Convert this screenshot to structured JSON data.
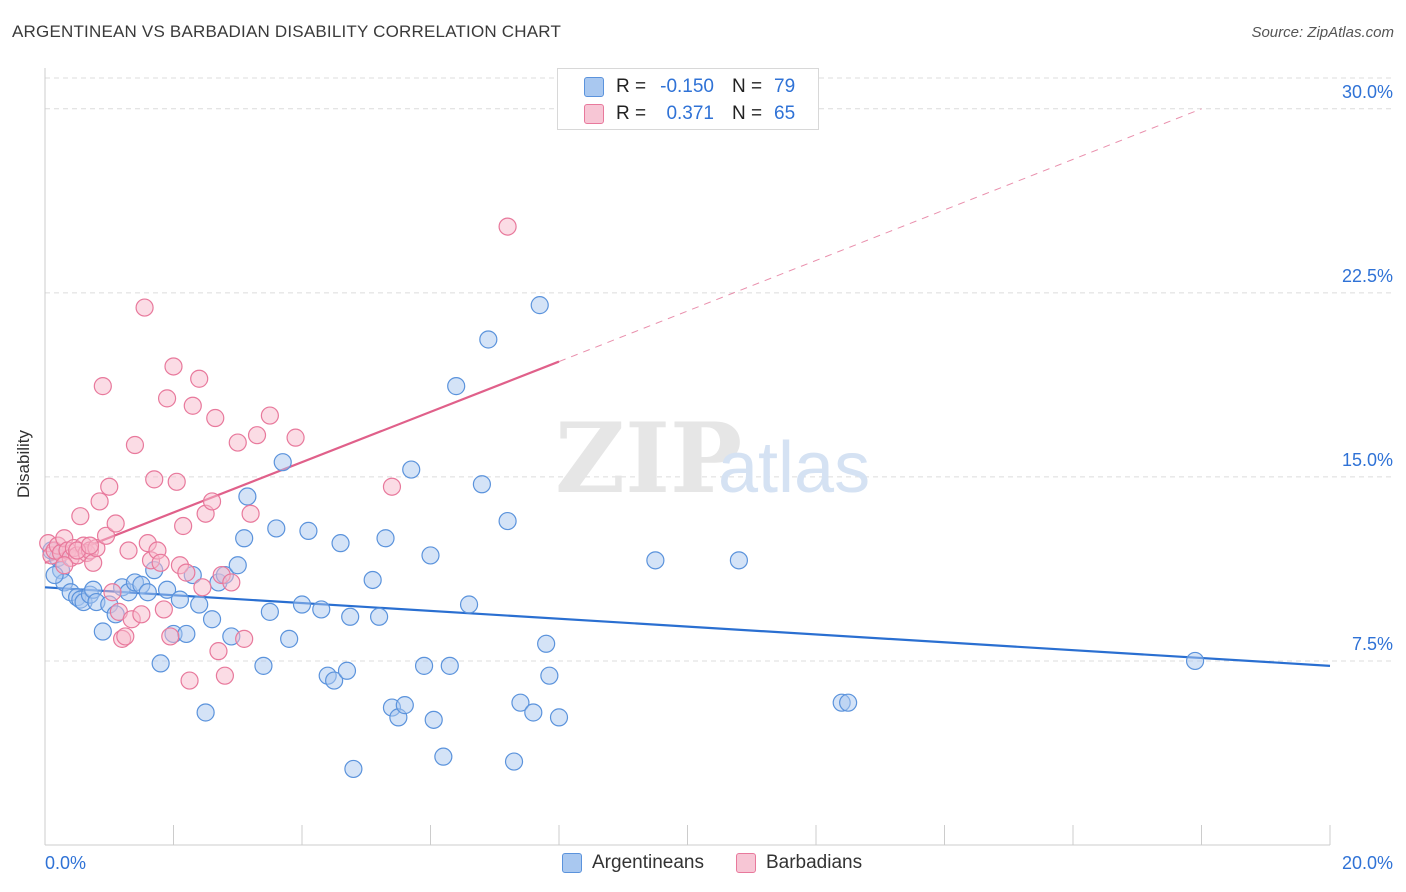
{
  "title": "ARGENTINEAN VS BARBADIAN DISABILITY CORRELATION CHART",
  "source": "Source: ZipAtlas.com",
  "watermark": {
    "zip": "ZIP",
    "atlas": "atlas"
  },
  "legend": {
    "rows": [
      {
        "r_label": "R =",
        "r_value": "-0.150",
        "n_label": "N =",
        "n_value": "79"
      },
      {
        "r_label": "R =",
        "r_value": "0.371",
        "n_label": "N =",
        "n_value": "65"
      }
    ]
  },
  "bottom_legend": [
    "Argentineans",
    "Barbadians"
  ],
  "colors": {
    "blue_fill": "#a9c8f0",
    "blue_stroke": "#5b93dc",
    "blue_line": "#2a6fd1",
    "pink_fill": "#f7b9cc",
    "pink_stroke": "#e8799c",
    "pink_line": "#e0608a",
    "axis_text": "#2f72d6",
    "grid": "#dcdcdc"
  },
  "chart_data": {
    "type": "scatter",
    "title": "ARGENTINEAN VS BARBADIAN DISABILITY CORRELATION CHART",
    "xlabel": "",
    "ylabel": "Disability",
    "xlim": [
      0,
      20
    ],
    "ylim": [
      0,
      31.5
    ],
    "x_tick_labels": [
      "0.0%",
      "20.0%"
    ],
    "y_ticks": [
      7.5,
      15.0,
      22.5,
      30.0
    ],
    "y_tick_labels": [
      "7.5%",
      "15.0%",
      "22.5%",
      "30.0%"
    ],
    "grid": true,
    "legend_position": "top-center",
    "series": [
      {
        "name": "Argentineans",
        "trend": {
          "x": [
            0,
            20
          ],
          "y": [
            10.5,
            7.3
          ]
        },
        "points": [
          [
            0.1,
            12.0
          ],
          [
            0.2,
            11.7
          ],
          [
            0.25,
            11.2
          ],
          [
            0.3,
            10.7
          ],
          [
            0.4,
            10.3
          ],
          [
            0.5,
            10.1
          ],
          [
            0.55,
            10.0
          ],
          [
            0.6,
            9.9
          ],
          [
            0.7,
            10.2
          ],
          [
            0.75,
            10.4
          ],
          [
            0.8,
            9.9
          ],
          [
            0.9,
            8.7
          ],
          [
            1.0,
            9.8
          ],
          [
            1.1,
            9.4
          ],
          [
            1.2,
            10.5
          ],
          [
            1.3,
            10.3
          ],
          [
            1.4,
            10.7
          ],
          [
            1.5,
            10.6
          ],
          [
            1.6,
            10.3
          ],
          [
            1.7,
            11.2
          ],
          [
            1.8,
            7.4
          ],
          [
            1.9,
            10.4
          ],
          [
            2.0,
            8.6
          ],
          [
            2.1,
            10.0
          ],
          [
            2.2,
            8.6
          ],
          [
            2.3,
            11.0
          ],
          [
            2.4,
            9.8
          ],
          [
            2.5,
            5.4
          ],
          [
            2.6,
            9.2
          ],
          [
            2.7,
            10.7
          ],
          [
            2.8,
            11.0
          ],
          [
            2.9,
            8.5
          ],
          [
            3.0,
            11.4
          ],
          [
            3.1,
            12.5
          ],
          [
            3.15,
            14.2
          ],
          [
            3.4,
            7.3
          ],
          [
            3.5,
            9.5
          ],
          [
            3.6,
            12.9
          ],
          [
            3.7,
            15.6
          ],
          [
            3.8,
            8.4
          ],
          [
            4.0,
            9.8
          ],
          [
            4.1,
            12.8
          ],
          [
            4.3,
            9.6
          ],
          [
            4.4,
            6.9
          ],
          [
            4.5,
            6.7
          ],
          [
            4.6,
            12.3
          ],
          [
            4.7,
            7.1
          ],
          [
            4.75,
            9.3
          ],
          [
            4.8,
            3.1
          ],
          [
            5.1,
            10.8
          ],
          [
            5.2,
            9.3
          ],
          [
            5.3,
            12.5
          ],
          [
            5.4,
            5.6
          ],
          [
            5.5,
            5.2
          ],
          [
            5.6,
            5.7
          ],
          [
            5.7,
            15.3
          ],
          [
            5.9,
            7.3
          ],
          [
            6.0,
            11.8
          ],
          [
            6.05,
            5.1
          ],
          [
            6.2,
            3.6
          ],
          [
            6.3,
            7.3
          ],
          [
            6.4,
            18.7
          ],
          [
            6.6,
            9.8
          ],
          [
            6.8,
            14.7
          ],
          [
            6.9,
            20.6
          ],
          [
            7.2,
            13.2
          ],
          [
            7.3,
            3.4
          ],
          [
            7.4,
            5.8
          ],
          [
            7.6,
            5.4
          ],
          [
            7.7,
            22.0
          ],
          [
            7.8,
            8.2
          ],
          [
            7.85,
            6.9
          ],
          [
            8.0,
            5.2
          ],
          [
            9.5,
            11.6
          ],
          [
            10.8,
            11.6
          ],
          [
            12.4,
            5.8
          ],
          [
            12.5,
            5.8
          ],
          [
            17.9,
            7.5
          ],
          [
            0.15,
            11.0
          ]
        ]
      },
      {
        "name": "Barbadians",
        "trend": {
          "x": [
            0,
            8.0,
            18.0
          ],
          "y": [
            11.5,
            19.7,
            30.0
          ]
        },
        "points": [
          [
            0.05,
            12.3
          ],
          [
            0.1,
            11.8
          ],
          [
            0.15,
            12.0
          ],
          [
            0.2,
            12.2
          ],
          [
            0.25,
            11.9
          ],
          [
            0.3,
            12.5
          ],
          [
            0.35,
            12.0
          ],
          [
            0.4,
            11.7
          ],
          [
            0.45,
            12.1
          ],
          [
            0.5,
            11.8
          ],
          [
            0.55,
            13.4
          ],
          [
            0.6,
            12.2
          ],
          [
            0.65,
            11.9
          ],
          [
            0.7,
            12.0
          ],
          [
            0.75,
            11.5
          ],
          [
            0.8,
            12.1
          ],
          [
            0.85,
            14.0
          ],
          [
            0.9,
            18.7
          ],
          [
            0.95,
            12.6
          ],
          [
            1.0,
            14.6
          ],
          [
            1.05,
            10.3
          ],
          [
            1.1,
            13.1
          ],
          [
            1.15,
            9.5
          ],
          [
            1.2,
            8.4
          ],
          [
            1.25,
            8.5
          ],
          [
            1.3,
            12.0
          ],
          [
            1.35,
            9.2
          ],
          [
            1.4,
            16.3
          ],
          [
            1.5,
            9.4
          ],
          [
            1.55,
            21.9
          ],
          [
            1.6,
            12.3
          ],
          [
            1.65,
            11.6
          ],
          [
            1.7,
            14.9
          ],
          [
            1.75,
            12.0
          ],
          [
            1.8,
            11.5
          ],
          [
            1.85,
            9.6
          ],
          [
            1.9,
            18.2
          ],
          [
            1.95,
            8.5
          ],
          [
            2.0,
            19.5
          ],
          [
            2.05,
            14.8
          ],
          [
            2.1,
            11.4
          ],
          [
            2.15,
            13.0
          ],
          [
            2.2,
            11.1
          ],
          [
            2.25,
            6.7
          ],
          [
            2.3,
            17.9
          ],
          [
            2.4,
            19.0
          ],
          [
            2.45,
            10.5
          ],
          [
            2.5,
            13.5
          ],
          [
            2.6,
            14.0
          ],
          [
            2.65,
            17.4
          ],
          [
            2.7,
            7.9
          ],
          [
            2.75,
            11.0
          ],
          [
            2.8,
            6.9
          ],
          [
            2.9,
            10.7
          ],
          [
            3.0,
            16.4
          ],
          [
            3.1,
            8.4
          ],
          [
            3.2,
            13.5
          ],
          [
            3.3,
            16.7
          ],
          [
            3.5,
            17.5
          ],
          [
            3.9,
            16.6
          ],
          [
            5.4,
            14.6
          ],
          [
            7.2,
            25.2
          ],
          [
            0.3,
            11.4
          ],
          [
            0.5,
            12.0
          ],
          [
            0.7,
            12.2
          ]
        ]
      }
    ]
  }
}
